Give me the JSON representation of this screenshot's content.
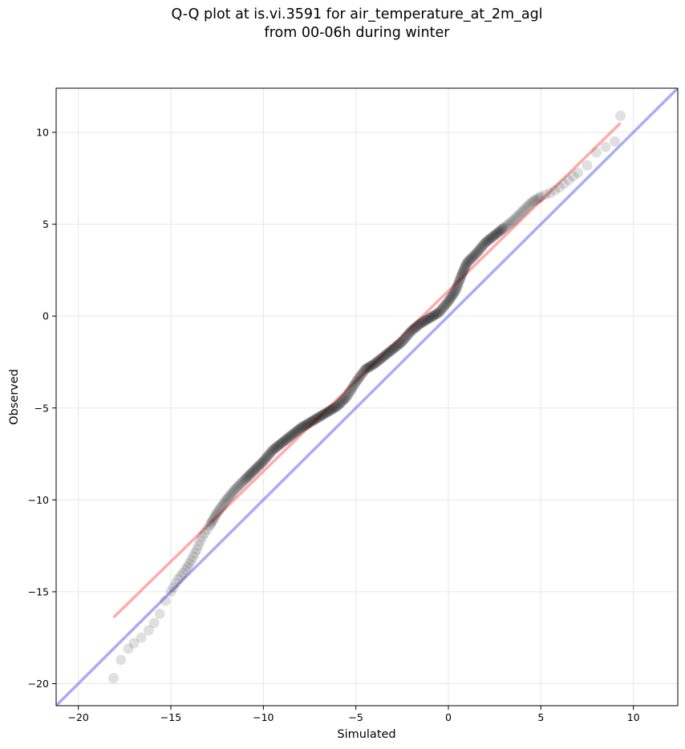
{
  "chart_data": {
    "type": "scatter",
    "title_lines": [
      "Q-Q plot at is.vi.3591 for air_temperature_at_2m_agl",
      "from 00-06h during winter"
    ],
    "xlabel": "Simulated",
    "ylabel": "Observed",
    "xlim": [
      -21.2,
      12.4
    ],
    "ylim": [
      -21.2,
      12.4
    ],
    "x_ticks": [
      -20,
      -15,
      -10,
      -5,
      0,
      5,
      10
    ],
    "y_ticks": [
      -20,
      -15,
      -10,
      -5,
      0,
      5,
      10
    ],
    "x_tick_labels": [
      "−20",
      "−15",
      "−10",
      "−5",
      "0",
      "5",
      "10"
    ],
    "y_tick_labels": [
      "−20",
      "−15",
      "−10",
      "−5",
      "0",
      "5",
      "10"
    ],
    "grid": true,
    "colors": {
      "points": "#000000",
      "fit_line": "#ff6666",
      "identity_line": "#6666ee",
      "grid": "#e6e6e6"
    },
    "identity_line": {
      "from": [
        -21.2,
        -21.2
      ],
      "to": [
        12.4,
        12.4
      ]
    },
    "fit_line": {
      "from": [
        -18.1,
        -16.4
      ],
      "to": [
        9.3,
        10.5
      ]
    },
    "quantile_curve": [
      [
        -18.1,
        -19.7
      ],
      [
        -17.7,
        -18.7
      ],
      [
        -17.3,
        -18.1
      ],
      [
        -17.0,
        -17.8
      ],
      [
        -16.6,
        -17.5
      ],
      [
        -16.2,
        -17.1
      ],
      [
        -15.9,
        -16.7
      ],
      [
        -15.6,
        -16.2
      ],
      [
        -15.3,
        -15.5
      ],
      [
        -15.0,
        -15.0
      ],
      [
        -14.6,
        -14.3
      ],
      [
        -14.2,
        -13.8
      ],
      [
        -13.9,
        -13.3
      ],
      [
        -13.6,
        -12.7
      ],
      [
        -13.3,
        -12.0
      ],
      [
        -12.9,
        -11.4
      ],
      [
        -12.5,
        -10.7
      ],
      [
        -12.0,
        -10.0
      ],
      [
        -11.5,
        -9.4
      ],
      [
        -11.0,
        -8.9
      ],
      [
        -10.5,
        -8.4
      ],
      [
        -10.0,
        -7.9
      ],
      [
        -9.5,
        -7.3
      ],
      [
        -9.0,
        -6.9
      ],
      [
        -8.5,
        -6.5
      ],
      [
        -8.0,
        -6.1
      ],
      [
        -7.5,
        -5.8
      ],
      [
        -7.0,
        -5.5
      ],
      [
        -6.5,
        -5.2
      ],
      [
        -6.0,
        -4.9
      ],
      [
        -5.5,
        -4.4
      ],
      [
        -5.0,
        -3.6
      ],
      [
        -4.5,
        -2.9
      ],
      [
        -4.0,
        -2.6
      ],
      [
        -3.5,
        -2.2
      ],
      [
        -3.0,
        -1.8
      ],
      [
        -2.5,
        -1.4
      ],
      [
        -2.0,
        -0.8
      ],
      [
        -1.5,
        -0.4
      ],
      [
        -1.0,
        -0.1
      ],
      [
        -0.5,
        0.2
      ],
      [
        0.0,
        0.8
      ],
      [
        0.4,
        1.4
      ],
      [
        0.7,
        2.2
      ],
      [
        1.0,
        2.9
      ],
      [
        1.5,
        3.4
      ],
      [
        2.0,
        4.0
      ],
      [
        2.5,
        4.4
      ],
      [
        3.0,
        4.8
      ],
      [
        3.5,
        5.2
      ],
      [
        4.0,
        5.7
      ],
      [
        4.5,
        6.2
      ],
      [
        5.0,
        6.5
      ],
      [
        5.5,
        6.7
      ],
      [
        6.0,
        7.0
      ],
      [
        6.5,
        7.4
      ],
      [
        7.0,
        7.8
      ],
      [
        7.5,
        8.2
      ],
      [
        8.0,
        8.9
      ],
      [
        8.5,
        9.2
      ],
      [
        9.0,
        9.5
      ],
      [
        9.3,
        10.9
      ]
    ]
  }
}
